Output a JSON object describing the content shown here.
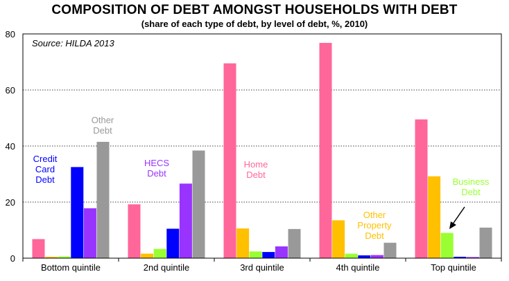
{
  "chart_data": {
    "type": "bar",
    "title": "COMPOSITION OF DEBT AMONGST  HOUSEHOLDS WITH DEBT",
    "subtitle": "(share of each type of debt, by level of debt, %, 2010)",
    "source": "Source: HILDA 2013",
    "categories": [
      "Bottom quintile",
      "2nd quintile",
      "3rd quintile",
      "4th quintile",
      "Top quintile"
    ],
    "ylim": [
      0,
      80
    ],
    "yticks": [
      "0",
      "20",
      "40",
      "60",
      "80"
    ],
    "grid": true,
    "series": [
      {
        "key": "home",
        "color": "#FF6699",
        "values": [
          6.8,
          19.2,
          69.5,
          76.8,
          49.5
        ]
      },
      {
        "key": "other_property",
        "color": "#FFC000",
        "values": [
          0.5,
          1.6,
          10.6,
          13.5,
          29.2
        ]
      },
      {
        "key": "business",
        "color": "#99FF33",
        "values": [
          0.6,
          3.3,
          2.4,
          1.6,
          9.0
        ]
      },
      {
        "key": "credit_card",
        "color": "#0000FF",
        "values": [
          32.5,
          10.5,
          2.2,
          1.0,
          0.5
        ]
      },
      {
        "key": "hecs",
        "color": "#9933FF",
        "values": [
          17.8,
          26.6,
          4.2,
          1.1,
          0.4
        ]
      },
      {
        "key": "other",
        "color": "#999999",
        "values": [
          41.5,
          38.4,
          10.4,
          5.5,
          10.9
        ]
      }
    ],
    "annotations": [
      {
        "key": "credit_card",
        "lines": [
          "Credit",
          "Card",
          "Debt"
        ],
        "color": "#0000FF"
      },
      {
        "key": "other",
        "lines": [
          "Other",
          "Debt"
        ],
        "color": "#999999"
      },
      {
        "key": "hecs",
        "lines": [
          "HECS",
          "Debt"
        ],
        "color": "#9933FF"
      },
      {
        "key": "home",
        "lines": [
          "Home",
          "Debt"
        ],
        "color": "#FF6699"
      },
      {
        "key": "other_property",
        "lines": [
          "Other",
          "Property",
          "Debt"
        ],
        "color": "#FFC000"
      },
      {
        "key": "business",
        "lines": [
          "Business",
          "Debt"
        ],
        "color": "#99FF33"
      }
    ]
  }
}
